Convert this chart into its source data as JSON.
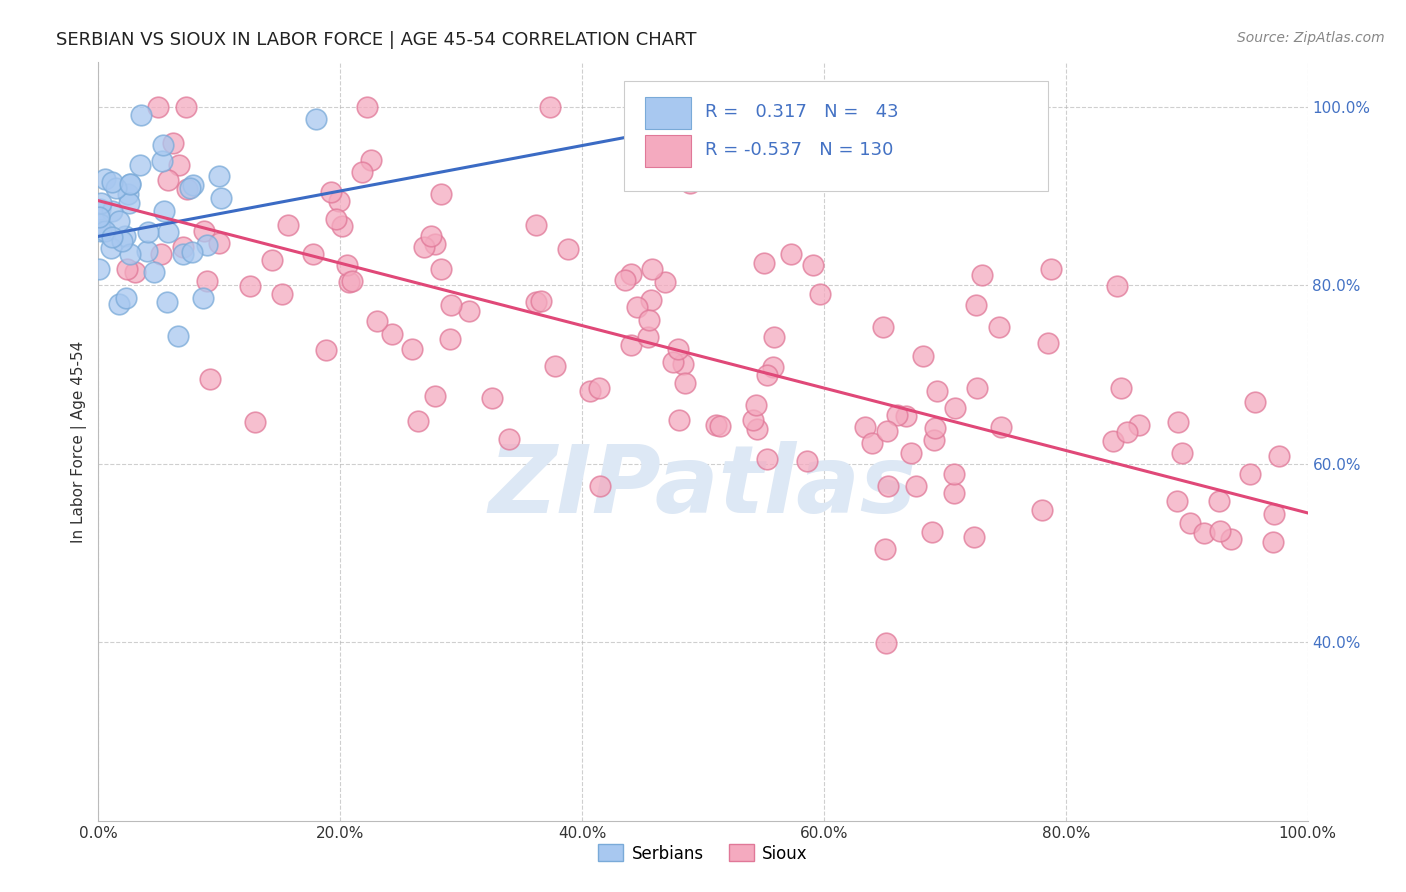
{
  "title": "SERBIAN VS SIOUX IN LABOR FORCE | AGE 45-54 CORRELATION CHART",
  "source": "Source: ZipAtlas.com",
  "ylabel": "In Labor Force | Age 45-54",
  "xlim": [
    0.0,
    1.0
  ],
  "ylim": [
    0.2,
    1.05
  ],
  "xticks": [
    0.0,
    0.2,
    0.4,
    0.6,
    0.8,
    1.0
  ],
  "yticks": [
    0.4,
    0.6,
    0.8,
    1.0
  ],
  "xticklabels": [
    "0.0%",
    "20.0%",
    "40.0%",
    "60.0%",
    "80.0%",
    "100.0%"
  ],
  "yticklabels": [
    "40.0%",
    "60.0%",
    "80.0%",
    "100.0%"
  ],
  "serbian_color": "#A8C8F0",
  "sioux_color": "#F4AABF",
  "serbian_edge": "#7AAAD8",
  "sioux_edge": "#E07898",
  "trend_serbian_color": "#3B6BC4",
  "trend_sioux_color": "#E04878",
  "serbian_R": 0.317,
  "serbian_N": 43,
  "sioux_R": -0.537,
  "sioux_N": 130,
  "background_color": "#FFFFFF",
  "grid_color": "#BBBBBB",
  "watermark_color": "#DDE8F5",
  "title_fontsize": 13,
  "tick_fontsize": 11,
  "ylabel_fontsize": 11,
  "legend_fontsize": 12,
  "serbian_trend_start_x": 0.0,
  "serbian_trend_end_x": 0.55,
  "serbian_trend_start_y": 0.855,
  "serbian_trend_end_y": 0.995,
  "sioux_trend_start_x": 0.0,
  "sioux_trend_end_x": 1.0,
  "sioux_trend_start_y": 0.895,
  "sioux_trend_end_y": 0.545
}
